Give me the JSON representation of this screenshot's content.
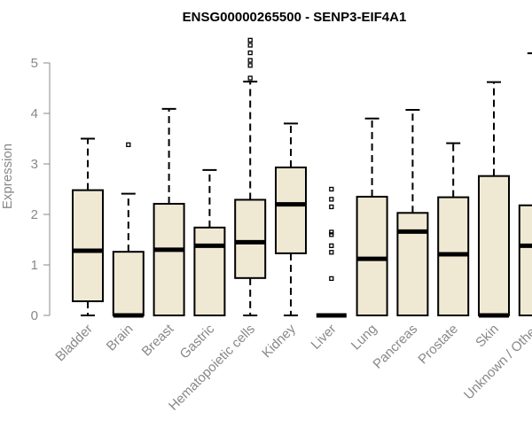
{
  "chart_data": {
    "type": "boxplot",
    "title": "ENSG00000265500 - SENP3-EIF4A1",
    "ylabel": "Expression",
    "xlabel": "",
    "ylim": [
      0,
      5.5
    ],
    "yticks": [
      "0",
      "1",
      "2",
      "3",
      "4",
      "5"
    ],
    "box_fill": "#EFE9D3",
    "categories": [
      "Bladder",
      "Brain",
      "Breast",
      "Gastric",
      "Hematopoietic cells",
      "Kidney",
      "Liver",
      "Lung",
      "Pancreas",
      "Prostate",
      "Skin",
      "Unknown / Other"
    ],
    "boxes": [
      {
        "name": "Bladder",
        "whisker_low": 0,
        "q1": 0.28,
        "median": 1.28,
        "q3": 2.48,
        "whisker_high": 3.5,
        "outliers": []
      },
      {
        "name": "Brain",
        "whisker_low": 0,
        "q1": 0,
        "median": 0,
        "q3": 1.26,
        "whisker_high": 2.41,
        "outliers": [
          3.38
        ]
      },
      {
        "name": "Breast",
        "whisker_low": 0,
        "q1": 0,
        "median": 1.3,
        "q3": 2.21,
        "whisker_high": 4.09,
        "outliers": []
      },
      {
        "name": "Gastric",
        "whisker_low": 0,
        "q1": 0,
        "median": 1.38,
        "q3": 1.74,
        "whisker_high": 2.88,
        "outliers": []
      },
      {
        "name": "Hematopoietic cells",
        "whisker_low": 0,
        "q1": 0.74,
        "median": 1.45,
        "q3": 2.29,
        "whisker_high": 4.63,
        "outliers": [
          4.7,
          4.95,
          5.05,
          5.2,
          5.35,
          5.45
        ]
      },
      {
        "name": "Kidney",
        "whisker_low": 0,
        "q1": 1.23,
        "median": 2.2,
        "q3": 2.93,
        "whisker_high": 3.8,
        "outliers": []
      },
      {
        "name": "Liver",
        "whisker_low": 0,
        "q1": 0,
        "median": 0,
        "q3": 0,
        "whisker_high": 0,
        "outliers": [
          0.73,
          1.25,
          1.38,
          1.6,
          1.65,
          2.15,
          2.3,
          2.5
        ]
      },
      {
        "name": "Lung",
        "whisker_low": 0,
        "q1": 0,
        "median": 1.12,
        "q3": 2.35,
        "whisker_high": 3.9,
        "outliers": []
      },
      {
        "name": "Pancreas",
        "whisker_low": 0,
        "q1": 0,
        "median": 1.66,
        "q3": 2.03,
        "whisker_high": 4.07,
        "outliers": []
      },
      {
        "name": "Prostate",
        "whisker_low": 0,
        "q1": 0,
        "median": 1.21,
        "q3": 2.34,
        "whisker_high": 3.41,
        "outliers": []
      },
      {
        "name": "Skin",
        "whisker_low": 0,
        "q1": 0,
        "median": 0,
        "q3": 2.76,
        "whisker_high": 4.62,
        "outliers": []
      },
      {
        "name": "Unknown / Other",
        "whisker_low": 0,
        "q1": 0,
        "median": 1.38,
        "q3": 2.18,
        "whisker_high": 5.19,
        "outliers": []
      }
    ]
  }
}
